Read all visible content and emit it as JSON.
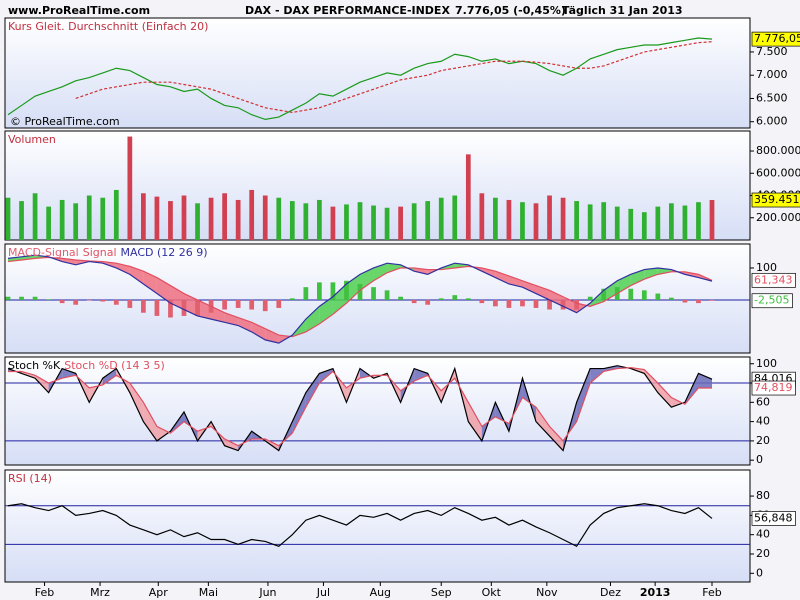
{
  "header": {
    "site": "www.ProRealTime.com",
    "title": "DAX - DAX PERFORMANCE-INDEX",
    "quote": "7.776,05 (-0,45%)",
    "period": "Täglich  31 Jan 2013"
  },
  "watermark": "© ProRealTime.com",
  "chart_data": [
    {
      "type": "line",
      "title": "Kurs Gleit. Durchschnitt (Einfach 20)",
      "xlim": [
        0,
        52
      ],
      "ylim": [
        5865,
        8230
      ],
      "yticks": [
        {
          "value": 6000,
          "label": "6.000"
        },
        {
          "value": 6500,
          "label": "6.500"
        },
        {
          "value": 7000,
          "label": "7.000"
        },
        {
          "value": 7500,
          "label": "7.500"
        }
      ],
      "series": [
        {
          "name": "Kurs",
          "kind": "line",
          "color": "#1a9a1a",
          "label_box": "#ffff00",
          "value_label": "7.776,05",
          "values": [
            6150,
            6350,
            6550,
            6650,
            6750,
            6880,
            6950,
            7050,
            7150,
            7100,
            6950,
            6800,
            6750,
            6650,
            6700,
            6500,
            6350,
            6300,
            6150,
            6050,
            6100,
            6250,
            6400,
            6600,
            6550,
            6700,
            6850,
            6950,
            7050,
            7000,
            7150,
            7250,
            7300,
            7450,
            7400,
            7300,
            7350,
            7250,
            7300,
            7250,
            7100,
            7000,
            7150,
            7350,
            7450,
            7550,
            7600,
            7650,
            7650,
            7700,
            7750,
            7800,
            7776.05
          ]
        },
        {
          "name": "Gleit. Durchschnitt (Einfach 20)",
          "kind": "line",
          "color": "#d03030",
          "dash": true,
          "values": [
            null,
            null,
            null,
            null,
            null,
            6500,
            6600,
            6700,
            6750,
            6800,
            6850,
            6850,
            6850,
            6800,
            6750,
            6700,
            6600,
            6500,
            6400,
            6300,
            6250,
            6200,
            6250,
            6300,
            6400,
            6500,
            6600,
            6700,
            6800,
            6900,
            6950,
            7000,
            7100,
            7150,
            7200,
            7250,
            7300,
            7300,
            7300,
            7280,
            7250,
            7200,
            7150,
            7150,
            7200,
            7300,
            7400,
            7500,
            7550,
            7600,
            7650,
            7700,
            7720
          ]
        }
      ]
    },
    {
      "type": "bar",
      "title": "Volumen",
      "xlim": [
        0,
        52
      ],
      "ylim": [
        0,
        980000
      ],
      "yticks": [
        {
          "value": 200000,
          "label": "200.000"
        },
        {
          "value": 400000,
          "label": "400.000"
        },
        {
          "value": 600000,
          "label": "600.000"
        },
        {
          "value": 800000,
          "label": "800.000"
        }
      ],
      "series": [
        {
          "name": "Volumen",
          "kind": "bar",
          "label_box": "#ffff00",
          "value_label": "359.451",
          "colors": [
            "#30b030",
            "#30b030",
            "#30b030",
            "#30b030",
            "#30b030",
            "#30b030",
            "#30b030",
            "#30b030",
            "#30b030",
            "#d04050",
            "#d04050",
            "#d04050",
            "#d04050",
            "#d04050",
            "#30b030",
            "#d04050",
            "#d04050",
            "#d04050",
            "#d04050",
            "#d04050",
            "#30b030",
            "#30b030",
            "#30b030",
            "#30b030",
            "#d04050",
            "#30b030",
            "#30b030",
            "#30b030",
            "#30b030",
            "#d04050",
            "#30b030",
            "#30b030",
            "#30b030",
            "#30b030",
            "#d04050",
            "#d04050",
            "#30b030",
            "#d04050",
            "#30b030",
            "#d04050",
            "#d04050",
            "#d04050",
            "#30b030",
            "#30b030",
            "#30b030",
            "#30b030",
            "#30b030",
            "#30b030",
            "#30b030",
            "#30b030",
            "#30b030",
            "#30b030",
            "#d04050"
          ],
          "values": [
            380000,
            350000,
            420000,
            300000,
            360000,
            330000,
            400000,
            380000,
            450000,
            930000,
            420000,
            390000,
            350000,
            400000,
            330000,
            380000,
            420000,
            360000,
            450000,
            400000,
            380000,
            350000,
            330000,
            360000,
            300000,
            320000,
            340000,
            310000,
            290000,
            300000,
            330000,
            350000,
            380000,
            400000,
            770000,
            420000,
            380000,
            360000,
            340000,
            330000,
            400000,
            380000,
            350000,
            320000,
            340000,
            300000,
            280000,
            250000,
            300000,
            330000,
            310000,
            340000,
            359451
          ]
        }
      ]
    },
    {
      "type": "macd",
      "legend": true,
      "xlim": [
        0,
        52
      ],
      "ylim": [
        -166,
        175
      ],
      "yticks": [
        100
      ],
      "hlines": [
        0
      ],
      "fills": [
        {
          "between": [
            2,
            1
          ],
          "up": "#50d050",
          "down": "#f07080"
        }
      ],
      "series": [
        {
          "name": "MACD-Signal",
          "kind": "bar",
          "color": "#40c040",
          "down_color": "#e06070",
          "label_box": "#ffffff",
          "value_label": "-2,505",
          "values": [
            10,
            10,
            10,
            2,
            -10,
            -15,
            -2,
            -5,
            -15,
            -25,
            -40,
            -50,
            -55,
            -50,
            -50,
            -40,
            -30,
            -25,
            -30,
            -35,
            -25,
            5,
            40,
            55,
            55,
            60,
            50,
            40,
            30,
            10,
            -10,
            -15,
            5,
            15,
            5,
            -10,
            -20,
            -25,
            -20,
            -25,
            -30,
            -30,
            -30,
            10,
            35,
            40,
            35,
            30,
            20,
            7,
            -8,
            -10,
            -2.505
          ]
        },
        {
          "name": "Signal",
          "kind": "line",
          "color": "#e05060",
          "label_box": "#ffffff",
          "value_label": "61,343",
          "values": [
            120,
            125,
            130,
            133,
            130,
            125,
            122,
            120,
            115,
            105,
            90,
            70,
            45,
            20,
            0,
            -20,
            -40,
            -55,
            -70,
            -90,
            -110,
            -115,
            -100,
            -75,
            -45,
            -10,
            30,
            60,
            85,
            100,
            100,
            95,
            95,
            100,
            105,
            100,
            90,
            75,
            60,
            45,
            30,
            10,
            -10,
            -20,
            -5,
            20,
            45,
            65,
            80,
            88,
            88,
            80,
            61.343
          ]
        },
        {
          "name": "MACD (12 26 9)",
          "kind": "line",
          "color": "#3030a0",
          "values": [
            130,
            135,
            140,
            135,
            120,
            110,
            120,
            115,
            100,
            80,
            50,
            20,
            -10,
            -30,
            -50,
            -60,
            -70,
            -80,
            -100,
            -125,
            -135,
            -110,
            -60,
            -20,
            10,
            50,
            80,
            100,
            115,
            110,
            90,
            80,
            100,
            115,
            110,
            90,
            70,
            50,
            40,
            20,
            0,
            -20,
            -40,
            -10,
            30,
            60,
            80,
            95,
            100,
            95,
            80,
            70,
            58.838
          ]
        }
      ]
    },
    {
      "type": "stochastic",
      "legend": true,
      "xlim": [
        0,
        52
      ],
      "ylim": [
        -5,
        107
      ],
      "yticks": [
        0,
        20,
        40,
        60,
        80,
        100
      ],
      "hlines": [
        20,
        80
      ],
      "fills": [
        {
          "between": [
            0,
            1
          ],
          "up": "#6a6ab8",
          "down": "#f0a0a8"
        }
      ],
      "series": [
        {
          "name": "Stoch %K",
          "kind": "line",
          "color": "#000000",
          "label_box": "#ffffff",
          "value_label": "84,016",
          "values": [
            95,
            90,
            85,
            70,
            95,
            90,
            60,
            85,
            95,
            70,
            40,
            20,
            30,
            50,
            20,
            40,
            15,
            10,
            30,
            20,
            10,
            40,
            70,
            90,
            95,
            60,
            95,
            85,
            90,
            60,
            95,
            90,
            60,
            95,
            40,
            20,
            60,
            30,
            85,
            40,
            25,
            10,
            60,
            95,
            95,
            98,
            95,
            90,
            70,
            55,
            60,
            90,
            84.016
          ]
        },
        {
          "name": "Stoch %D (14 3 5)",
          "kind": "line",
          "color": "#e05060",
          "label_box": "#ffffff",
          "value_label": "74,819",
          "values": [
            92,
            92,
            88,
            80,
            85,
            88,
            75,
            78,
            88,
            80,
            60,
            35,
            28,
            40,
            30,
            35,
            22,
            15,
            22,
            22,
            15,
            28,
            55,
            80,
            92,
            75,
            85,
            88,
            88,
            72,
            82,
            88,
            72,
            85,
            60,
            35,
            45,
            38,
            65,
            55,
            35,
            20,
            40,
            80,
            92,
            95,
            96,
            94,
            80,
            65,
            58,
            75,
            74.819
          ]
        }
      ]
    },
    {
      "type": "line",
      "title": "RSI (14)",
      "xlim": [
        0,
        52
      ],
      "ylim": [
        -9,
        107
      ],
      "yticks": [
        0,
        20,
        40,
        60,
        80
      ],
      "hlines": [
        30,
        70
      ],
      "xticks": [
        {
          "value": 2.7,
          "label": "Feb"
        },
        {
          "value": 6.8,
          "label": "Mrz"
        },
        {
          "value": 11.1,
          "label": "Apr"
        },
        {
          "value": 14.8,
          "label": "Mai"
        },
        {
          "value": 19.2,
          "label": "Jun"
        },
        {
          "value": 23.3,
          "label": "Jul"
        },
        {
          "value": 27.5,
          "label": "Aug"
        },
        {
          "value": 32,
          "label": "Sep"
        },
        {
          "value": 35.7,
          "label": "Okt"
        },
        {
          "value": 39.8,
          "label": "Nov"
        },
        {
          "value": 44.5,
          "label": "Dez"
        },
        {
          "value": 47.8,
          "label": "2013"
        },
        {
          "value": 52,
          "label": "Feb"
        }
      ],
      "series": [
        {
          "name": "RSI (14)",
          "kind": "line",
          "color": "#000000",
          "label_box": "#ffffff",
          "value_label": "56,848",
          "values": [
            70,
            72,
            68,
            65,
            70,
            60,
            62,
            65,
            60,
            50,
            45,
            40,
            45,
            38,
            42,
            35,
            35,
            30,
            35,
            33,
            28,
            40,
            55,
            60,
            55,
            50,
            60,
            58,
            62,
            55,
            62,
            65,
            60,
            68,
            62,
            55,
            58,
            50,
            55,
            48,
            42,
            35,
            28,
            50,
            62,
            68,
            70,
            72,
            70,
            65,
            62,
            68,
            56.848
          ]
        }
      ]
    }
  ]
}
